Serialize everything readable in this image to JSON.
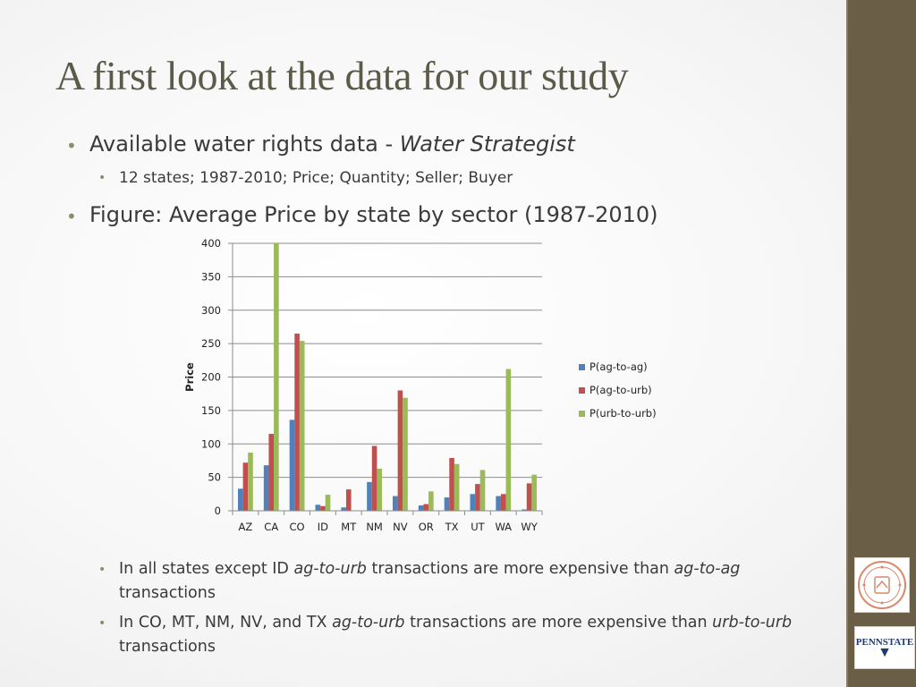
{
  "slide": {
    "title": "A first look at the data for our study",
    "bullets": {
      "b1": "Available water rights data - ",
      "b1_source": "Water Strategist",
      "b1_sub": "12 states; 1987-2010; Price; Quantity; Seller; Buyer",
      "b2": "Figure: Average Price by state by sector (1987-2010)"
    },
    "notes": [
      {
        "pre": "In all states except ID ",
        "em1": "ag-to-urb",
        "mid": " transactions are more expensive than ",
        "em2": "ag-to-ag",
        "post": " transactions"
      },
      {
        "pre": "In CO, MT, NM, NV, and TX ",
        "em1": "ag-to-urb",
        "mid": " transactions are more expensive than ",
        "em2": "urb-to-urb",
        "post": " transactions"
      }
    ],
    "logos": {
      "psu_line1": "PENNSTATE",
      "psu_line2": "▼"
    }
  },
  "colors": {
    "sidebar": "#6b5e47",
    "title": "#5c5a48",
    "series": [
      "#4f81bd",
      "#c0504d",
      "#9bbb59"
    ]
  },
  "chart_data": {
    "type": "bar",
    "title": "",
    "xlabel": "",
    "ylabel": "Price",
    "ylim": [
      0,
      400
    ],
    "yticks": [
      0,
      50,
      100,
      150,
      200,
      250,
      300,
      350,
      400
    ],
    "categories": [
      "AZ",
      "CA",
      "CO",
      "ID",
      "MT",
      "NM",
      "NV",
      "OR",
      "TX",
      "UT",
      "WA",
      "WY"
    ],
    "series": [
      {
        "name": "P(ag-to-ag)",
        "values": [
          33,
          68,
          136,
          9,
          5,
          43,
          22,
          8,
          20,
          25,
          22,
          2
        ]
      },
      {
        "name": "P(ag-to-urb)",
        "values": [
          72,
          115,
          265,
          7,
          32,
          97,
          180,
          10,
          79,
          40,
          25,
          41
        ]
      },
      {
        "name": "P(urb-to-urb)",
        "values": [
          87,
          400,
          254,
          24,
          0,
          63,
          169,
          29,
          70,
          61,
          212,
          54
        ]
      }
    ],
    "legend_position": "right"
  }
}
